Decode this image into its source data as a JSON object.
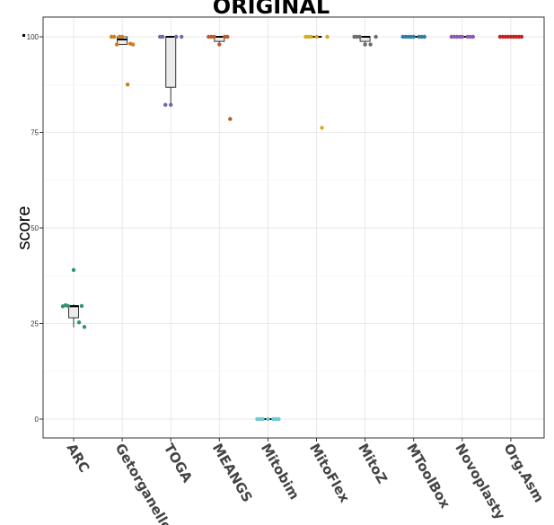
{
  "chart_data": {
    "type": "box",
    "title": "ORIGINAL",
    "xlabel": "",
    "ylabel": "score",
    "ylim": [
      -5,
      105
    ],
    "yticks": [
      0,
      25,
      50,
      75,
      100
    ],
    "grid": true,
    "categories": [
      "ARC",
      "Getorganelle",
      "TOGA",
      "MEANGS",
      "Mitobim",
      "MitoFlex",
      "MitoZ",
      "MToolBox",
      "Novoplasty",
      "Org.Asm"
    ],
    "colors": [
      "#2e9474",
      "#d07b1e",
      "#6e68a8",
      "#c2552c",
      "#6cc9d6",
      "#d9a823",
      "#6b6b6b",
      "#2a7ca5",
      "#8d57b8",
      "#c41f1f"
    ],
    "boxes": [
      {
        "min": 24,
        "q1": 26.5,
        "median": 29.5,
        "q3": 29.7,
        "max": 30
      },
      {
        "min": 98,
        "q1": 98,
        "median": 99.3,
        "q3": 100,
        "max": 100
      },
      {
        "min": 82.2,
        "q1": 86.8,
        "median": 100,
        "q3": 100,
        "max": 100
      },
      {
        "min": 98,
        "q1": 98.8,
        "median": 100,
        "q3": 100,
        "max": 100
      },
      {
        "min": 0,
        "q1": 0,
        "median": 0,
        "q3": 0,
        "max": 0
      },
      {
        "min": 100,
        "q1": 100,
        "median": 100,
        "q3": 100,
        "max": 100
      },
      {
        "min": 98,
        "q1": 98.8,
        "median": 100,
        "q3": 100,
        "max": 100
      },
      {
        "min": 100,
        "q1": 100,
        "median": 100,
        "q3": 100,
        "max": 100
      },
      {
        "min": 100,
        "q1": 100,
        "median": 100,
        "q3": 100,
        "max": 100
      },
      {
        "min": 100,
        "q1": 100,
        "median": 100,
        "q3": 100,
        "max": 100
      }
    ],
    "points": [
      [
        29.5,
        29.6,
        39,
        25.3,
        24.1,
        29.8,
        29.6
      ],
      [
        100,
        98,
        100,
        87.5,
        98,
        100,
        98.2,
        100
      ],
      [
        100,
        82.2,
        82.2,
        100,
        100,
        100
      ],
      [
        100,
        100,
        98,
        100,
        78.5,
        100,
        100
      ],
      [
        0,
        0,
        0,
        0,
        0,
        0,
        0
      ],
      [
        100,
        100,
        100,
        76.2,
        100,
        100
      ],
      [
        100,
        100,
        98,
        98,
        100,
        100
      ],
      [
        100,
        100,
        100,
        100,
        100,
        100,
        100,
        100
      ],
      [
        100,
        100,
        100,
        100,
        100,
        100,
        100,
        100
      ],
      [
        100,
        100,
        100,
        100,
        100,
        100,
        100,
        100,
        100
      ]
    ]
  }
}
